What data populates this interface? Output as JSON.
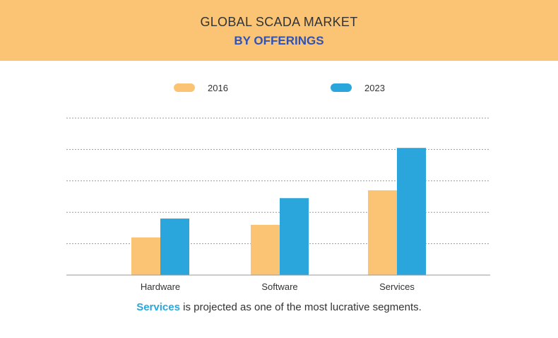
{
  "header": {
    "title": "GLOBAL SCADA MARKET",
    "subtitle": "BY OFFERINGS"
  },
  "colors": {
    "header_bg": "#fbc374",
    "series_2016": "#fbc374",
    "series_2023": "#2aa6dc",
    "subtitle": "#2f52b5"
  },
  "chart_data": {
    "type": "bar",
    "title": "GLOBAL SCADA MARKET",
    "subtitle": "BY OFFERINGS",
    "categories": [
      "Hardware",
      "Software",
      "Services"
    ],
    "series": [
      {
        "name": "2016",
        "values": [
          1.2,
          1.6,
          2.7
        ]
      },
      {
        "name": "2023",
        "values": [
          1.8,
          2.45,
          4.05
        ]
      }
    ],
    "xlabel": "",
    "ylabel": "",
    "ylim": [
      0,
      5
    ],
    "y_tick_labels_shown": false,
    "grid": "dashed horizontal",
    "legend_position": "top"
  },
  "footnote": {
    "highlight": "Services",
    "rest": " is projected as one of the most lucrative segments."
  }
}
